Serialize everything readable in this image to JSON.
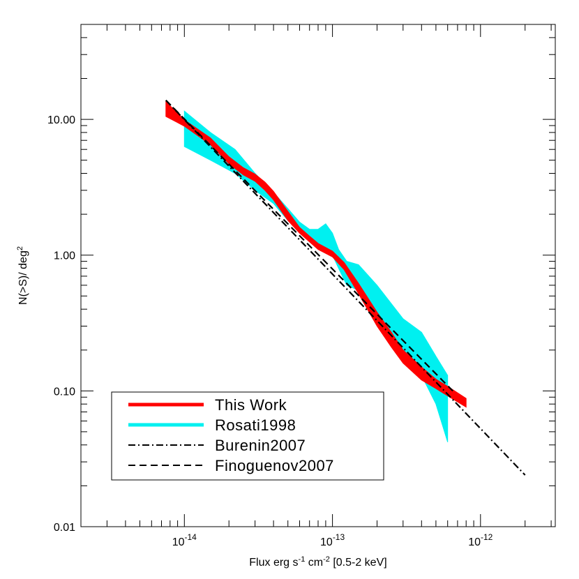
{
  "chart_data": {
    "type": "line",
    "title": "",
    "xlabel": {
      "main": "Flux erg s",
      "sup1": "-1",
      "mid": " cm",
      "sup2": "-2",
      "tail": " [0.5-2 keV]"
    },
    "ylabel": {
      "main": "N(>S)/ deg",
      "sup": "2"
    },
    "x_scale": "log",
    "y_scale": "log",
    "xlim": [
      2e-15,
      3.2e-12
    ],
    "ylim": [
      0.01,
      50
    ],
    "grid": false,
    "legend_position": "bottom-left",
    "x_ticks": [
      {
        "value": 1e-14,
        "base": "10",
        "exp": "-14"
      },
      {
        "value": 1e-13,
        "base": "10",
        "exp": "-13"
      },
      {
        "value": 1e-12,
        "base": "10",
        "exp": "-12"
      }
    ],
    "y_ticks": [
      {
        "value": 0.01,
        "label": "0.01"
      },
      {
        "value": 0.1,
        "label": "0.10"
      },
      {
        "value": 1,
        "label": "1.00"
      },
      {
        "value": 10,
        "label": "10.00"
      }
    ],
    "series": [
      {
        "name": "Rosati1998",
        "style": "band",
        "color": "#00f0f0",
        "x": [
          1e-14,
          1.5e-14,
          2.2e-14,
          3e-14,
          4e-14,
          5e-14,
          6e-14,
          7e-14,
          8e-14,
          9e-14,
          1e-13,
          1.1e-13,
          1.25e-13,
          1.5e-13,
          2e-13,
          3e-13,
          4e-13,
          5e-13,
          6e-13
        ],
        "y_low": [
          6.3,
          5.0,
          4.0,
          3.0,
          2.4,
          1.8,
          1.55,
          1.35,
          1.2,
          1.1,
          1.0,
          0.8,
          0.6,
          0.55,
          0.35,
          0.18,
          0.13,
          0.08,
          0.042
        ],
        "y_high": [
          11.5,
          8.0,
          6.0,
          4.0,
          2.9,
          2.2,
          1.75,
          1.55,
          1.55,
          1.7,
          1.45,
          1.1,
          0.9,
          0.85,
          0.6,
          0.34,
          0.27,
          0.18,
          0.13
        ]
      },
      {
        "name": "This Work",
        "style": "band",
        "color": "#ff0000",
        "x": [
          7.5e-15,
          1e-14,
          1.5e-14,
          2e-14,
          2.5e-14,
          3e-14,
          3.5e-14,
          4e-14,
          5e-14,
          6e-14,
          7e-14,
          8e-14,
          1e-13,
          1.2e-13,
          1.5e-13,
          2e-13,
          2.5e-13,
          3e-13,
          4e-13,
          5e-13,
          6e-13,
          8e-13
        ],
        "y_low": [
          10.5,
          8.9,
          6.5,
          4.7,
          3.9,
          3.5,
          3.0,
          2.55,
          1.8,
          1.45,
          1.25,
          1.1,
          0.97,
          0.78,
          0.52,
          0.3,
          0.21,
          0.16,
          0.12,
          0.104,
          0.092,
          0.076
        ],
        "y_high": [
          13.5,
          9.9,
          7.3,
          5.3,
          4.4,
          3.95,
          3.45,
          2.95,
          2.1,
          1.6,
          1.38,
          1.22,
          1.07,
          0.88,
          0.62,
          0.38,
          0.27,
          0.2,
          0.15,
          0.122,
          0.108,
          0.088
        ]
      },
      {
        "name": "Burenin2007",
        "style": "dashdot",
        "color": "#000000",
        "x": [
          7.5e-15,
          2e-12
        ],
        "y": [
          13.8,
          0.024
        ]
      },
      {
        "name": "Finoguenov2007",
        "style": "dashed",
        "color": "#000000",
        "x": [
          7.5e-15,
          6.5e-13
        ],
        "y": [
          13.8,
          0.1
        ]
      }
    ],
    "legend": [
      {
        "label": "This Work",
        "style": "solid-thick",
        "color": "#ff0000"
      },
      {
        "label": "Rosati1998",
        "style": "solid-thick",
        "color": "#00f0f0"
      },
      {
        "label": "Burenin2007",
        "style": "dashdot",
        "color": "#000000"
      },
      {
        "label": "Finoguenov2007",
        "style": "dashed",
        "color": "#000000"
      }
    ]
  }
}
